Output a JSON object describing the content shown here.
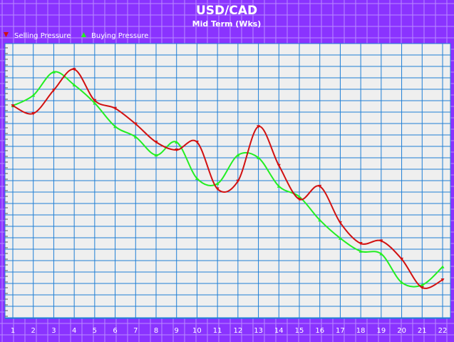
{
  "chart_data": {
    "type": "line",
    "title": "USD/CAD",
    "subtitle": "Mid Term (Wks)",
    "x": [
      1,
      2,
      3,
      4,
      5,
      6,
      7,
      8,
      9,
      10,
      11,
      12,
      13,
      14,
      15,
      16,
      17,
      18,
      19,
      20,
      21,
      22
    ],
    "x_tick_labels": [
      "1",
      "2",
      "3",
      "4",
      "5",
      "6",
      "7",
      "8",
      "9",
      "10",
      "11",
      "12",
      "13",
      "14",
      "15",
      "16",
      "17",
      "18",
      "19",
      "20",
      "21",
      "22"
    ],
    "ylim": [
      0,
      100
    ],
    "series": [
      {
        "name": "Selling Pressure",
        "marker": "triangle-down",
        "color": "#d11010",
        "values": [
          78,
          75,
          84,
          92,
          80,
          77,
          71,
          64,
          61,
          64,
          46,
          49,
          70,
          55,
          42,
          47,
          33,
          25,
          26,
          19,
          8,
          11
        ]
      },
      {
        "name": "Buying Pressure",
        "marker": "triangle-up",
        "color": "#22ee22",
        "values": [
          78,
          82,
          91,
          86,
          79,
          70,
          66,
          59,
          64,
          50,
          48,
          59,
          58,
          47,
          43,
          34,
          27,
          22,
          21,
          10,
          9,
          16
        ]
      }
    ],
    "grid": true,
    "legend_position": "top-left"
  },
  "colors": {
    "frame": "#8a33ff",
    "plot_bg": "#efefef",
    "grid": "#1f7fd6",
    "text": "#ffffff"
  }
}
